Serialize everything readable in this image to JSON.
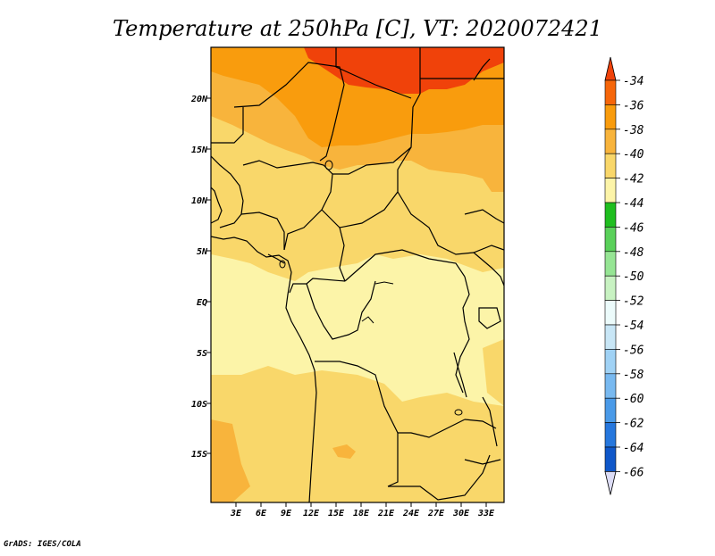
{
  "title": "Temperature at 250hPa [C], VT: 2020072421",
  "credit": "GrADS: IGES/COLA",
  "map": {
    "lat_labels": [
      "20N",
      "15N",
      "10N",
      "5N",
      "EQ",
      "5S",
      "10S",
      "15S"
    ],
    "lon_labels": [
      "3E",
      "6E",
      "9E",
      "12E",
      "15E",
      "18E",
      "21E",
      "24E",
      "27E",
      "30E",
      "33E"
    ]
  },
  "colorbar": {
    "levels": [
      "-34",
      "-36",
      "-38",
      "-40",
      "-42",
      "-44",
      "-46",
      "-48",
      "-50",
      "-52",
      "-54",
      "-56",
      "-58",
      "-60",
      "-62",
      "-64",
      "-66"
    ],
    "colors": [
      "#f0420a",
      "#f6660a",
      "#f99c0d",
      "#f8b43c",
      "#f9d76a",
      "#fcf4a8",
      "#1fbe1f",
      "#5ad05a",
      "#96e594",
      "#c8f2c2",
      "#ecfbfb",
      "#c8e6f6",
      "#a0d2f5",
      "#78b9f0",
      "#4a9ae8",
      "#2677dd",
      "#0f57c9",
      "#0b3aa6",
      "#0a1e78",
      "#dcdcf5"
    ]
  },
  "colors": {
    "t_34_36": "#f0420a",
    "t_36_38": "#f99c0d",
    "t_38_40": "#f8b43c",
    "t_40_42": "#f9d76a",
    "t_42_44": "#fcf4a8"
  }
}
